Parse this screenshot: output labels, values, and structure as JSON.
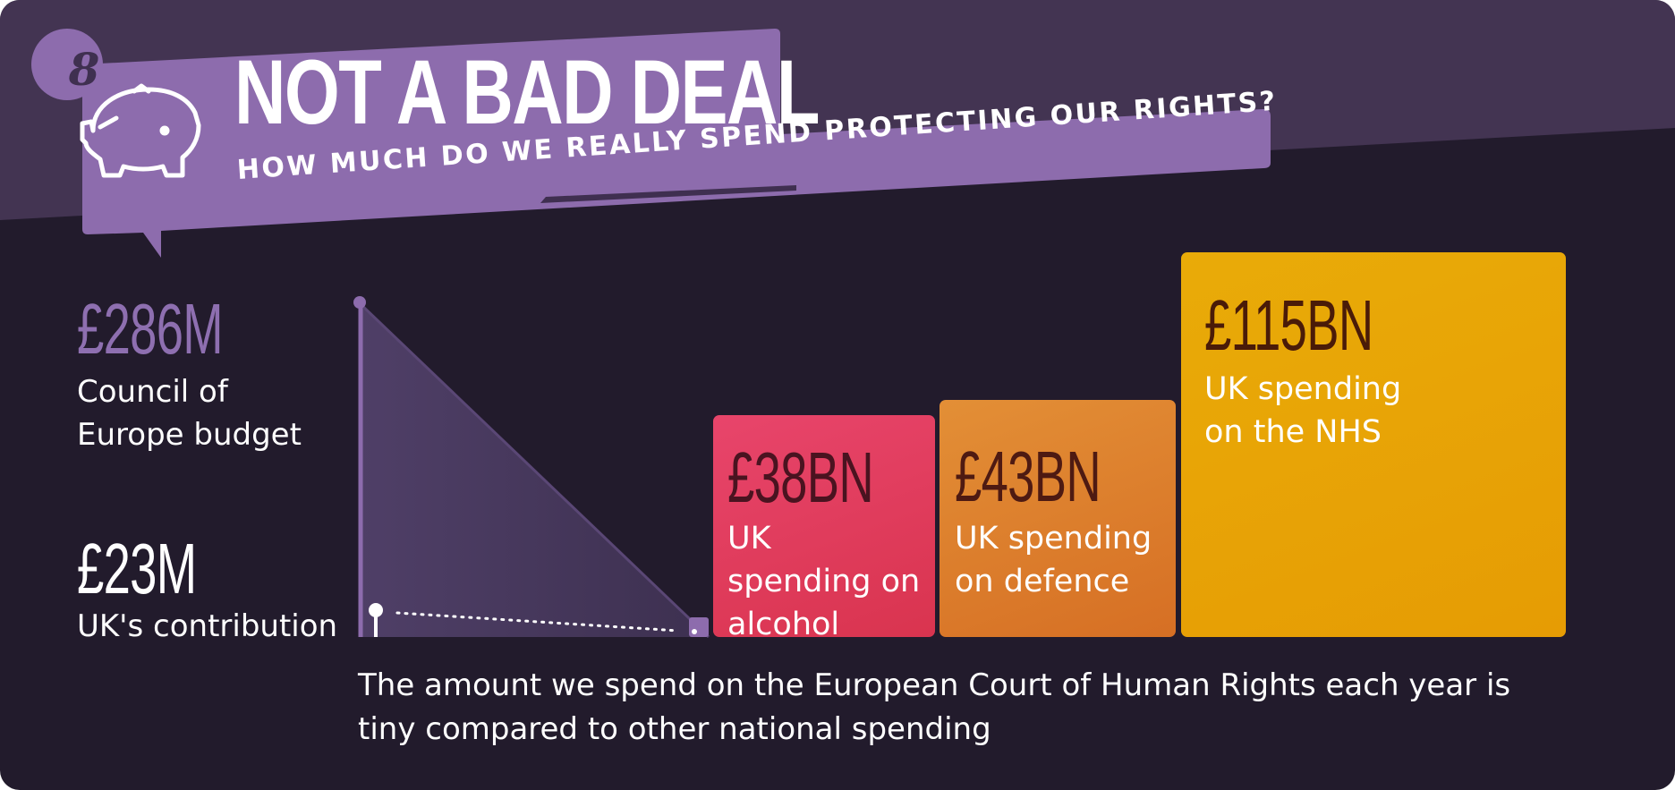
{
  "header": {
    "badge_number": "8",
    "title": "NOT A BAD DEAL",
    "subtitle": "HOW MUCH DO WE REALLY SPEND PROTECTING OUR RIGHTS?"
  },
  "colors": {
    "background": "#221b2c",
    "top_band": "#433452",
    "banner_purple": "#8d6cad",
    "triangle_purple": "#6f5a8a",
    "alcohol": "#e0405c",
    "defence": "#de822e",
    "nhs": "#e8a506"
  },
  "icons": {
    "banner": "piggy-bank-icon"
  },
  "chart_data": {
    "type": "bar",
    "unit": "£",
    "items": [
      {
        "value": "£286M",
        "amount_millions": 286,
        "label": "Council of Europe budget"
      },
      {
        "value": "£23M",
        "amount_millions": 23,
        "label": "UK's contribution"
      },
      {
        "value": "£38BN",
        "amount_millions": 38000,
        "label": "UK spending on alcohol"
      },
      {
        "value": "£43BN",
        "amount_millions": 43000,
        "label": "UK spending on defence"
      },
      {
        "value": "£115BN",
        "amount_millions": 115000,
        "label": "UK spending on the NHS"
      }
    ],
    "caption": "The amount we spend on the European Court of Human Rights each year is tiny compared to other national spending"
  }
}
